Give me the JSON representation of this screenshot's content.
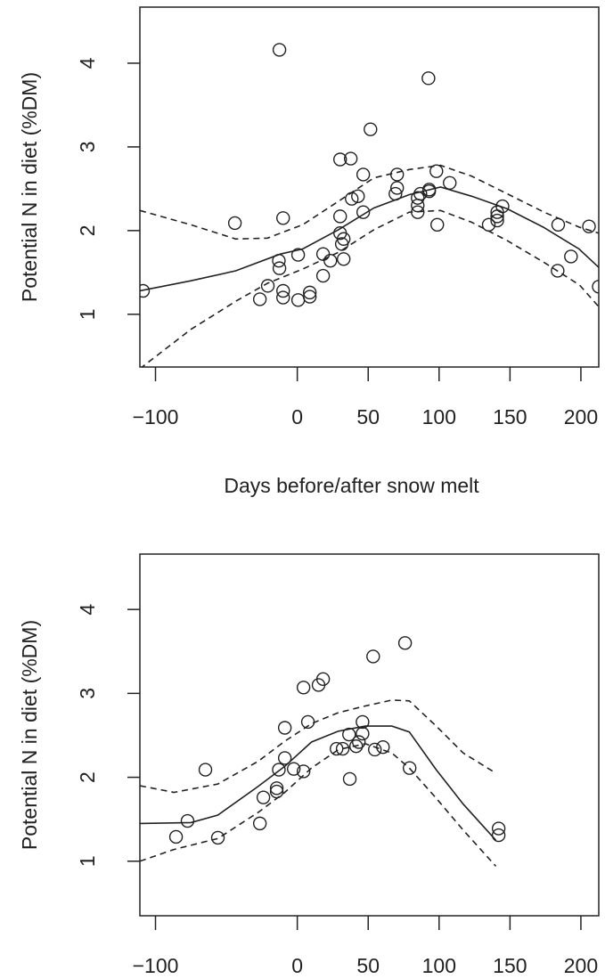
{
  "chart_data": [
    {
      "type": "scatter",
      "xlabel": "Days before/after snow melt",
      "ylabel": "Potential N in diet (%DM)",
      "xlim": [
        -111,
        212.6
      ],
      "ylim": [
        0.37,
        4.67
      ],
      "xticks": [
        {
          "value": -100,
          "label": "−100"
        },
        0,
        50,
        100,
        150,
        200
      ],
      "yticks": [
        1,
        2,
        3,
        4
      ],
      "series": [
        {
          "style": "points",
          "x": [
            -108.8,
            -44,
            -12.6,
            -10,
            -13,
            -12.6,
            -20.8,
            -26.4,
            -10,
            -10,
            0.6,
            0.6,
            8.8,
            8.8,
            18.2,
            23.3,
            18.2,
            30.2,
            37.7,
            30.2,
            30.2,
            31.4,
            32.7,
            32.7,
            38.4,
            42.8,
            46.5,
            46.5,
            51.6,
            70.4,
            70.4,
            69.2,
            84.9,
            84.9,
            84.9,
            86.8,
            93,
            93,
            92.5,
            98.1,
            98.7,
            107.5,
            135,
            141,
            141,
            141,
            144.7,
            184,
            183.6,
            193,
            205.7,
            212.6
          ],
          "y": [
            1.28,
            2.09,
            4.16,
            2.15,
            1.64,
            1.55,
            1.34,
            1.18,
            1.28,
            1.2,
            1.17,
            1.71,
            1.26,
            1.21,
            1.46,
            1.64,
            1.72,
            2.85,
            2.86,
            2.17,
            1.97,
            1.84,
            1.9,
            1.66,
            2.38,
            2.41,
            2.67,
            2.22,
            3.21,
            2.67,
            2.51,
            2.44,
            2.39,
            2.3,
            2.22,
            2.44,
            2.49,
            2.47,
            3.82,
            2.71,
            2.07,
            2.57,
            2.07,
            2.17,
            2.12,
            2.22,
            2.29,
            2.07,
            1.52,
            1.69,
            2.05,
            1.33
          ]
        },
        {
          "style": "solid",
          "x": [
            -111,
            -75,
            -43.4,
            -12,
            3.8,
            29,
            54,
            79,
            101,
            123,
            148,
            173.6,
            198.7,
            212.6
          ],
          "y": [
            1.28,
            1.4,
            1.52,
            1.72,
            1.78,
            2.01,
            2.27,
            2.43,
            2.52,
            2.41,
            2.26,
            2.04,
            1.78,
            1.56
          ]
        },
        {
          "style": "dashed",
          "x": [
            -111,
            -75,
            -43.4,
            -21,
            3.8,
            29,
            54,
            79,
            101,
            123,
            148,
            174,
            199,
            212.6
          ],
          "y": [
            2.24,
            2.07,
            1.9,
            1.91,
            2.07,
            2.35,
            2.63,
            2.73,
            2.78,
            2.65,
            2.44,
            2.22,
            2.04,
            1.97
          ]
        },
        {
          "style": "dashed",
          "x": [
            -111,
            -75,
            -43,
            -21,
            3.8,
            29,
            54,
            79,
            101,
            123,
            148,
            174,
            199,
            212.6
          ],
          "y": [
            0.35,
            0.82,
            1.16,
            1.37,
            1.54,
            1.74,
            2.01,
            2.22,
            2.24,
            2.1,
            1.88,
            1.62,
            1.35,
            1.09
          ]
        }
      ]
    },
    {
      "type": "scatter",
      "ylabel": "Potential N in diet (%DM)",
      "xlim": [
        -111,
        212.6
      ],
      "ylim": [
        0.35,
        4.66
      ],
      "xticks": [
        {
          "value": -100,
          "label": "−100"
        },
        0,
        50,
        100,
        150,
        200
      ],
      "yticks": [
        1,
        2,
        3,
        4
      ],
      "series": [
        {
          "style": "points",
          "x": [
            -85.5,
            -77.4,
            -64.8,
            -56,
            -26.4,
            -23.9,
            -14.5,
            -14.5,
            -13,
            -8.8,
            -8.8,
            -2.5,
            4.4,
            4.4,
            7.5,
            15,
            18.2,
            27.7,
            32,
            36.5,
            37,
            41.5,
            43.4,
            46,
            46,
            53.5,
            54.7,
            60.4,
            76,
            79.2,
            142,
            142
          ],
          "y": [
            1.29,
            1.48,
            2.09,
            1.28,
            1.45,
            1.76,
            1.83,
            1.87,
            2.09,
            2.59,
            2.23,
            2.1,
            2.07,
            3.07,
            2.66,
            3.1,
            3.17,
            2.34,
            2.34,
            2.51,
            1.98,
            2.37,
            2.42,
            2.66,
            2.52,
            3.44,
            2.33,
            2.36,
            3.6,
            2.11,
            1.39,
            1.31
          ]
        },
        {
          "style": "solid",
          "x": [
            -111,
            -75,
            -56,
            -27.7,
            -8.8,
            10,
            29,
            48,
            66.7,
            79,
            98,
            117,
            140
          ],
          "y": [
            1.45,
            1.46,
            1.55,
            1.89,
            2.13,
            2.42,
            2.55,
            2.61,
            2.61,
            2.54,
            2.09,
            1.68,
            1.25
          ]
        },
        {
          "style": "dashed",
          "x": [
            -111,
            -87,
            -56,
            -27.7,
            -8.8,
            10,
            29,
            48,
            66.7,
            79,
            98,
            117,
            140
          ],
          "y": [
            1.9,
            1.82,
            1.92,
            2.19,
            2.43,
            2.64,
            2.77,
            2.85,
            2.92,
            2.91,
            2.61,
            2.29,
            2.05
          ]
        },
        {
          "style": "dashed",
          "x": [
            -111,
            -87,
            -56,
            -27.7,
            -8.8,
            10,
            29,
            48,
            66.7,
            79,
            98,
            117,
            140
          ],
          "y": [
            1.0,
            1.14,
            1.27,
            1.58,
            1.82,
            2.11,
            2.33,
            2.4,
            2.29,
            2.11,
            1.75,
            1.37,
            0.94
          ]
        }
      ]
    }
  ]
}
